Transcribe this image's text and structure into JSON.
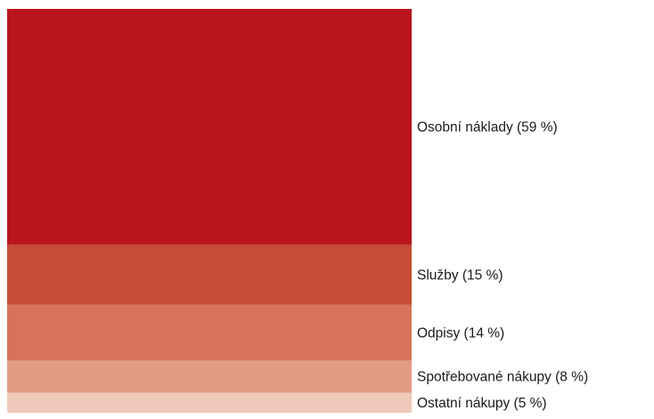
{
  "chart_data": {
    "type": "stacked_bar",
    "categories": [
      "Osobní náklady (59 %)",
      "Služby (15 %)",
      "Odpisy (14 %)",
      "Spotřebované nákupy (8 %)",
      "Ostatní nákupy (5 %)"
    ],
    "values": [
      59,
      15,
      14,
      8,
      5
    ],
    "colors": [
      "#b9141b",
      "#c84b37",
      "#d6735a",
      "#e29c83",
      "#efc9b9"
    ]
  }
}
